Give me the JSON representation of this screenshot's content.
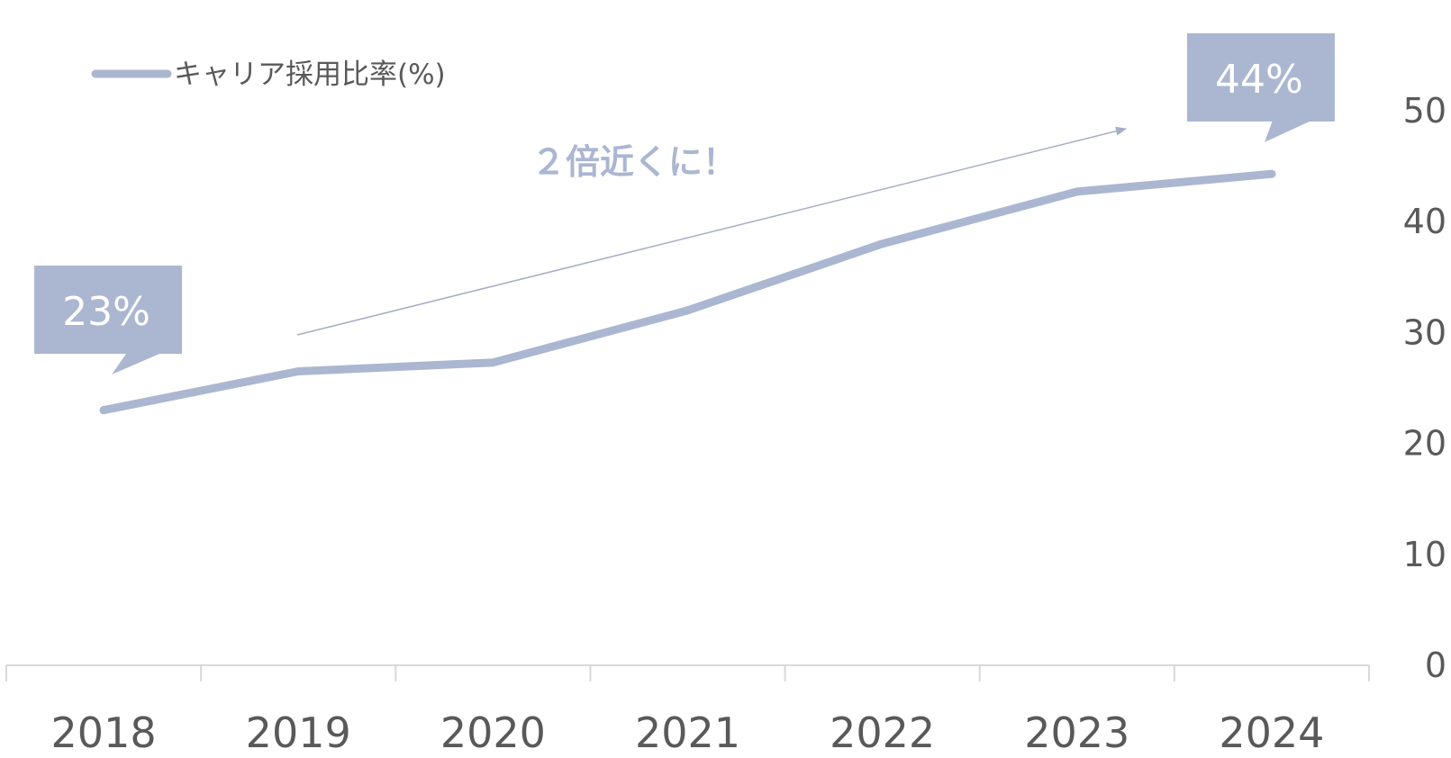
{
  "chart_data": {
    "type": "line",
    "categories": [
      "2018",
      "2019",
      "2020",
      "2021",
      "2022",
      "2023",
      "2024"
    ],
    "series": [
      {
        "name": "キャリア採用比率(%)",
        "values": [
          23,
          26.5,
          27.3,
          32,
          38,
          42.7,
          44.3
        ]
      }
    ],
    "y_ticks": [
      "0",
      "10",
      "20",
      "30",
      "40",
      "50"
    ],
    "ylim": [
      0,
      50
    ],
    "y_axis_side": "right",
    "grid": false,
    "legend": "top-left",
    "annotation": "２倍近くに！",
    "callouts": [
      {
        "category": "2018",
        "label": "23%"
      },
      {
        "category": "2024",
        "label": "44%"
      }
    ],
    "colors": {
      "series": "#abb6d1",
      "axis": "#d9d9d9",
      "text": "#595959",
      "arrow": "#a7aec2"
    }
  }
}
